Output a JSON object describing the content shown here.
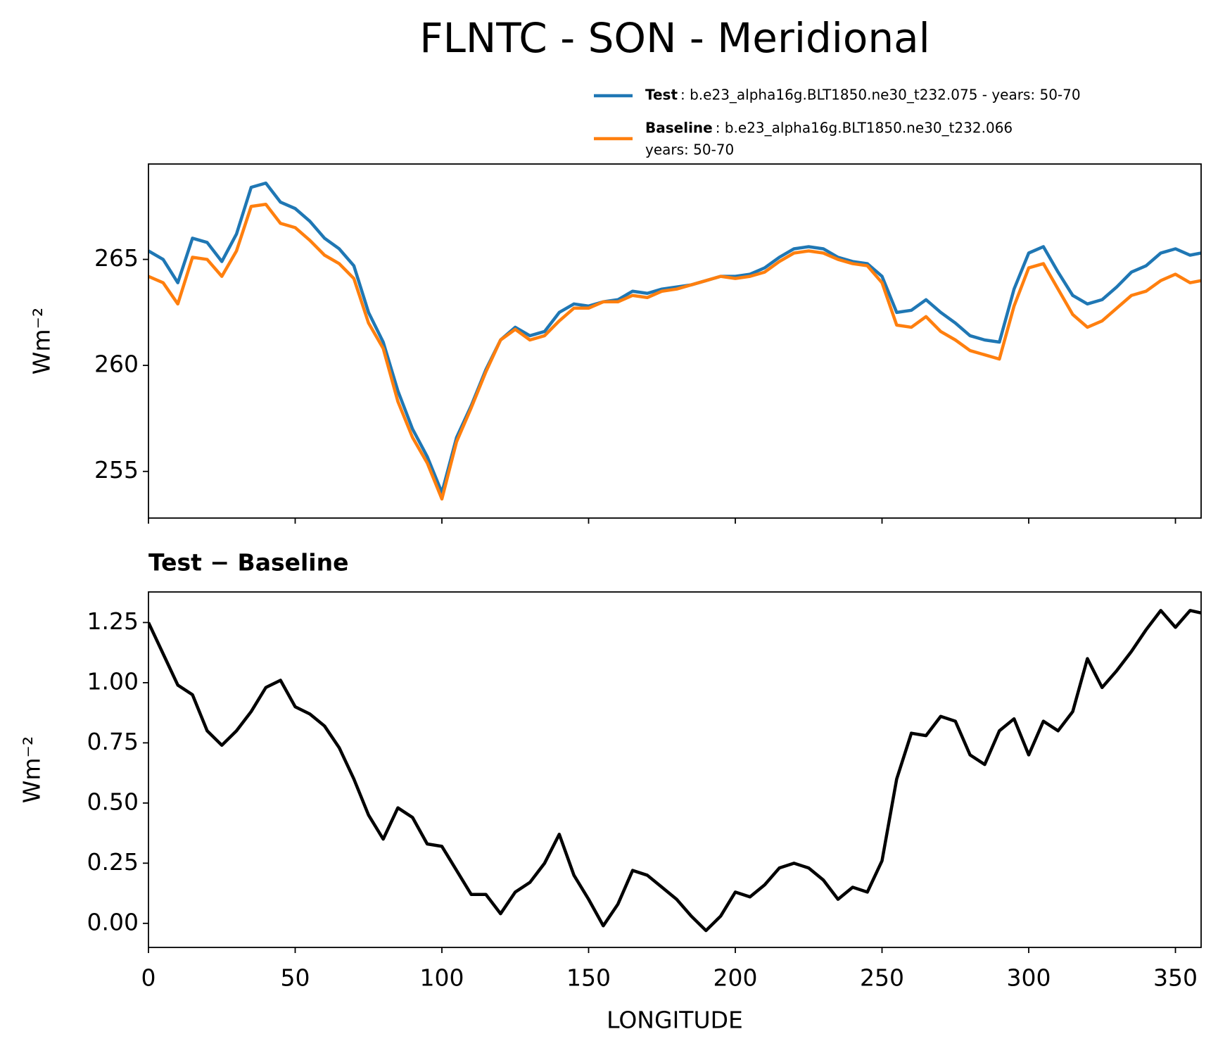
{
  "title": "FLNTC - SON - Meridional",
  "chart_data": [
    {
      "type": "line",
      "ylabel": "Wm⁻²",
      "legend": "above-right",
      "x": [
        0,
        5,
        10,
        15,
        20,
        25,
        30,
        35,
        40,
        45,
        50,
        55,
        60,
        65,
        70,
        75,
        80,
        85,
        90,
        95,
        100,
        105,
        110,
        115,
        120,
        125,
        130,
        135,
        140,
        145,
        150,
        155,
        160,
        165,
        170,
        175,
        180,
        185,
        190,
        195,
        200,
        205,
        210,
        215,
        220,
        225,
        230,
        235,
        240,
        245,
        250,
        255,
        260,
        265,
        270,
        275,
        280,
        285,
        290,
        295,
        300,
        305,
        310,
        315,
        320,
        325,
        330,
        335,
        340,
        345,
        350,
        355,
        358.75
      ],
      "xlim": [
        0,
        358.75
      ],
      "xticks": [
        0,
        50,
        100,
        150,
        200,
        250,
        300,
        350
      ],
      "ylim": [
        252.8,
        269.5
      ],
      "yticks": [
        255,
        260,
        265
      ],
      "series": [
        {
          "name": "Test",
          "description": [
            ": b.e23_alpha16g.BLT1850.ne30_t232.075 - years: 50-70"
          ],
          "color": "#1f77b4",
          "values": [
            265.4,
            265.0,
            263.9,
            266.0,
            265.8,
            264.9,
            266.2,
            268.4,
            268.6,
            267.7,
            267.4,
            266.8,
            266.0,
            265.5,
            264.7,
            262.5,
            261.1,
            258.8,
            257.0,
            255.7,
            254.0,
            256.6,
            258.1,
            259.8,
            261.2,
            261.8,
            261.4,
            261.6,
            262.5,
            262.9,
            262.8,
            263.0,
            263.1,
            263.5,
            263.4,
            263.6,
            263.7,
            263.8,
            264.0,
            264.2,
            264.2,
            264.3,
            264.6,
            265.1,
            265.5,
            265.6,
            265.5,
            265.1,
            264.9,
            264.8,
            264.2,
            262.5,
            262.6,
            263.1,
            262.5,
            262.0,
            261.4,
            261.2,
            261.1,
            263.6,
            265.3,
            265.6,
            264.4,
            263.3,
            262.9,
            263.1,
            263.7,
            264.4,
            264.7,
            265.3,
            265.5,
            265.2,
            265.3
          ]
        },
        {
          "name": "Baseline",
          "description": [
            ": b.e23_alpha16g.BLT1850.ne30_t232.066",
            "years: 50-70"
          ],
          "color": "#ff7f0e",
          "values": [
            264.2,
            263.9,
            262.9,
            265.1,
            265.0,
            264.2,
            265.4,
            267.5,
            267.6,
            266.7,
            266.5,
            265.9,
            265.2,
            264.8,
            264.1,
            262.0,
            260.8,
            258.3,
            256.6,
            255.4,
            253.7,
            256.4,
            258.0,
            259.7,
            261.2,
            261.7,
            261.2,
            261.4,
            262.1,
            262.7,
            262.7,
            263.0,
            263.0,
            263.3,
            263.2,
            263.5,
            263.6,
            263.8,
            264.0,
            264.2,
            264.1,
            264.2,
            264.4,
            264.9,
            265.3,
            265.4,
            265.3,
            265.0,
            264.8,
            264.7,
            263.9,
            261.9,
            261.8,
            262.3,
            261.6,
            261.2,
            260.7,
            260.5,
            260.3,
            262.8,
            264.6,
            264.8,
            263.6,
            262.4,
            261.8,
            262.1,
            262.7,
            263.3,
            263.5,
            264.0,
            264.3,
            263.9,
            264.0
          ]
        }
      ]
    },
    {
      "type": "line",
      "title": "Test − Baseline",
      "ylabel": "Wm⁻²",
      "xlabel": "LONGITUDE",
      "x": [
        0,
        5,
        10,
        15,
        20,
        25,
        30,
        35,
        40,
        45,
        50,
        55,
        60,
        65,
        70,
        75,
        80,
        85,
        90,
        95,
        100,
        105,
        110,
        115,
        120,
        125,
        130,
        135,
        140,
        145,
        150,
        155,
        160,
        165,
        170,
        175,
        180,
        185,
        190,
        195,
        200,
        205,
        210,
        215,
        220,
        225,
        230,
        235,
        240,
        245,
        250,
        255,
        260,
        265,
        270,
        275,
        280,
        285,
        290,
        295,
        300,
        305,
        310,
        315,
        320,
        325,
        330,
        335,
        340,
        345,
        350,
        355,
        358.75
      ],
      "xlim": [
        0,
        358.75
      ],
      "xticks": [
        0,
        50,
        100,
        150,
        200,
        250,
        300,
        350
      ],
      "ylim": [
        -0.1,
        1.377
      ],
      "yticks": [
        {
          "value": 0,
          "label": "0.00"
        },
        0.25,
        {
          "value": 0.5,
          "label": "0.50"
        },
        0.75,
        {
          "value": 1,
          "label": "1.00"
        },
        1.25
      ],
      "color": "#000000",
      "values": [
        1.25,
        1.12,
        0.99,
        0.95,
        0.8,
        0.74,
        0.8,
        0.88,
        0.98,
        1.01,
        0.9,
        0.87,
        0.82,
        0.73,
        0.6,
        0.45,
        0.35,
        0.48,
        0.44,
        0.33,
        0.32,
        0.22,
        0.12,
        0.12,
        0.04,
        0.13,
        0.17,
        0.25,
        0.37,
        0.2,
        0.1,
        -0.01,
        0.08,
        0.22,
        0.2,
        0.15,
        0.1,
        0.03,
        -0.03,
        0.03,
        0.13,
        0.11,
        0.16,
        0.23,
        0.25,
        0.23,
        0.18,
        0.1,
        0.15,
        0.13,
        0.26,
        0.6,
        0.79,
        0.78,
        0.86,
        0.84,
        0.7,
        0.66,
        0.8,
        0.85,
        0.7,
        0.84,
        0.8,
        0.88,
        1.1,
        0.98,
        1.05,
        1.13,
        1.22,
        1.3,
        1.23,
        1.3,
        1.29
      ]
    }
  ]
}
